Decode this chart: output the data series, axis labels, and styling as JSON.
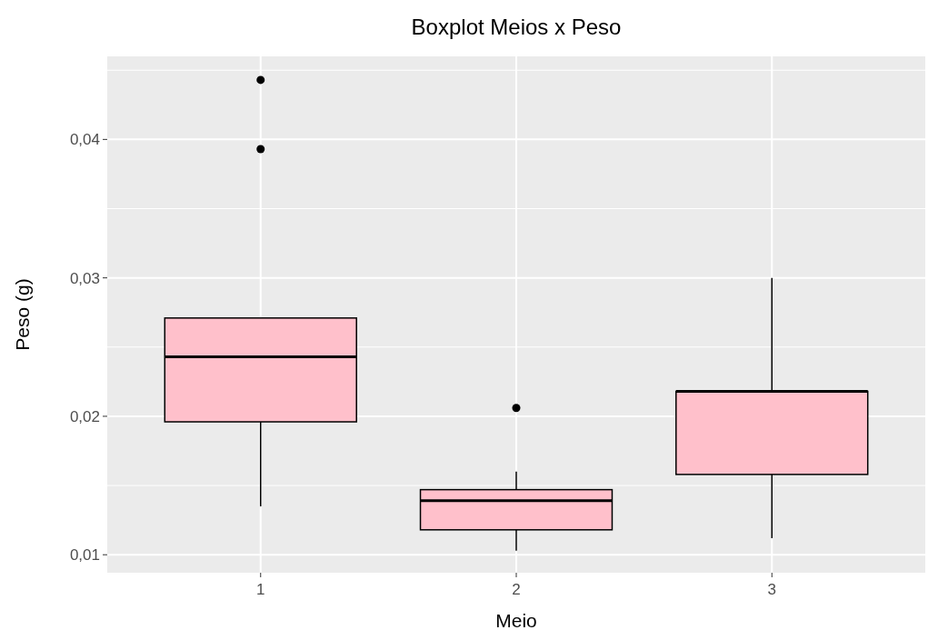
{
  "chart_data": {
    "type": "box",
    "title": "Boxplot Meios x Peso",
    "xlabel": "Meio",
    "ylabel": "Peso (g)",
    "categories": [
      "1",
      "2",
      "3"
    ],
    "color": "#ffc0cb",
    "boxes": [
      {
        "low": 0.0135,
        "q1": 0.0196,
        "median": 0.0243,
        "q3": 0.0271,
        "high": 0.0271,
        "outliers": [
          0.0393,
          0.0443
        ]
      },
      {
        "low": 0.0103,
        "q1": 0.0118,
        "median": 0.0139,
        "q3": 0.0147,
        "high": 0.016,
        "outliers": [
          0.0206
        ]
      },
      {
        "low": 0.0112,
        "q1": 0.0158,
        "median": 0.0218,
        "q3": 0.0218,
        "high": 0.03
      }
    ],
    "ylim": [
      0.0087,
      0.046
    ],
    "yticks": [
      {
        "value": 0.01,
        "label": "0,01"
      },
      {
        "value": 0.02,
        "label": "0,02"
      },
      {
        "value": 0.03,
        "label": "0,03"
      },
      {
        "value": 0.04,
        "label": "0,04"
      }
    ],
    "grid": true
  }
}
